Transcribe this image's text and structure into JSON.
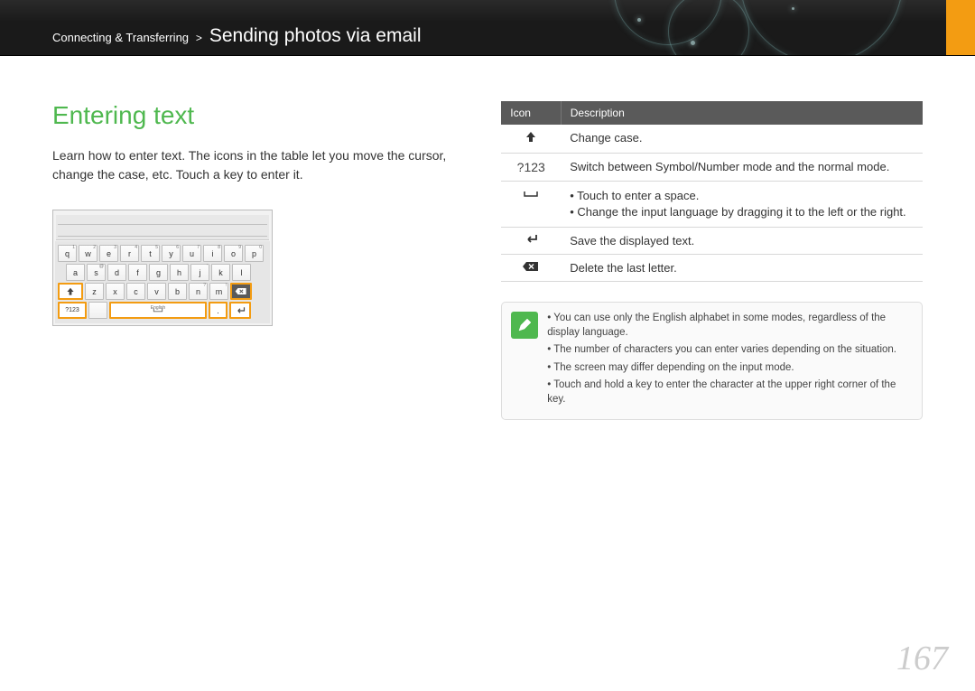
{
  "header": {
    "section": "Connecting & Transferring",
    "separator": ">",
    "title": "Sending photos via email"
  },
  "heading": "Entering text",
  "intro": "Learn how to enter text. The icons in the table let you move the cursor, change the case, etc. Touch a key to enter it.",
  "keyboard": {
    "row1": [
      {
        "k": "q",
        "s": "1"
      },
      {
        "k": "w",
        "s": "2"
      },
      {
        "k": "e",
        "s": "3"
      },
      {
        "k": "r",
        "s": "4"
      },
      {
        "k": "t",
        "s": "5"
      },
      {
        "k": "y",
        "s": "6"
      },
      {
        "k": "u",
        "s": "7"
      },
      {
        "k": "i",
        "s": "8"
      },
      {
        "k": "o",
        "s": "9"
      },
      {
        "k": "p",
        "s": "0"
      }
    ],
    "row2": [
      {
        "k": "a",
        "s": ""
      },
      {
        "k": "s",
        "s": "@"
      },
      {
        "k": "d",
        "s": ""
      },
      {
        "k": "f",
        "s": ""
      },
      {
        "k": "g",
        "s": ""
      },
      {
        "k": "h",
        "s": ""
      },
      {
        "k": "j",
        "s": "'"
      },
      {
        "k": "k",
        "s": ""
      },
      {
        "k": "l",
        "s": ""
      }
    ],
    "row3": [
      {
        "k": "z",
        "s": ""
      },
      {
        "k": "x",
        "s": ""
      },
      {
        "k": "c",
        "s": ""
      },
      {
        "k": "v",
        "s": ""
      },
      {
        "k": "b",
        "s": ""
      },
      {
        "k": "n",
        "s": "?"
      },
      {
        "k": "m",
        "s": "!"
      }
    ],
    "mode_label": "?123",
    "lang": "English",
    "period": "."
  },
  "table": {
    "head_icon": "Icon",
    "head_desc": "Description",
    "rows": [
      {
        "icon_type": "shift",
        "desc": "Change case."
      },
      {
        "icon_type": "mode",
        "mode_text": "?123",
        "desc": "Switch between Symbol/Number mode and the normal mode."
      },
      {
        "icon_type": "space",
        "bullets": [
          "Touch to enter a space.",
          "Change the input language by dragging it to the left or the right."
        ]
      },
      {
        "icon_type": "enter",
        "desc": "Save the displayed text."
      },
      {
        "icon_type": "delete",
        "desc": "Delete the last letter."
      }
    ]
  },
  "note": {
    "items": [
      "You can use only the English alphabet in some modes, regardless of the display language.",
      "The number of characters you can enter varies depending on the situation.",
      "The screen may differ depending on the input mode.",
      "Touch and hold a key to enter the character at the upper right corner of the key."
    ]
  },
  "page_number": "167",
  "colors": {
    "accent_green": "#4fb84f",
    "accent_orange": "#f39c12",
    "header_bg": "#1a1a1a",
    "table_head": "#5a5a5a"
  }
}
